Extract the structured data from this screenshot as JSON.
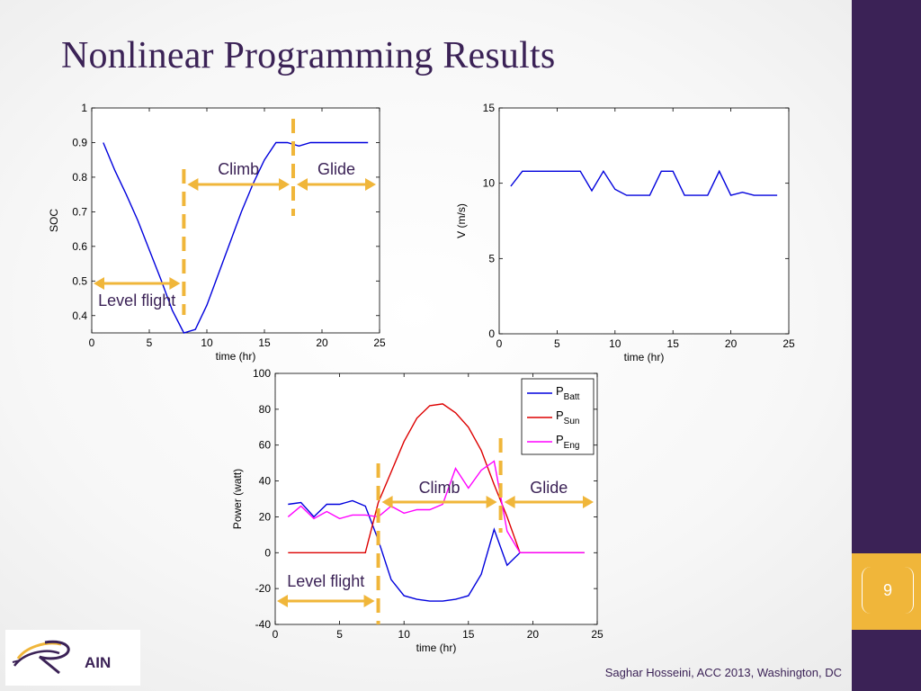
{
  "slide": {
    "title": "Nonlinear Programming Results",
    "page_number": "9",
    "footer": "Saghar Hosseini,  ACC 2013, Washington, DC",
    "logo_text": "AIN",
    "accent_color": "#f0b63a",
    "brand_color": "#3b2256"
  },
  "chart_data": [
    {
      "type": "line",
      "id": "soc",
      "xlabel": "time (hr)",
      "ylabel": "SOC",
      "xlim": [
        0,
        25
      ],
      "ylim": [
        0.35,
        1
      ],
      "xticks": [
        0,
        5,
        10,
        15,
        20,
        25
      ],
      "yticks": [
        0.4,
        0.5,
        0.6,
        0.7,
        0.8,
        0.9,
        1
      ],
      "ytick_labels": [
        "0.4",
        "0.5",
        "0.6",
        "0.7",
        "0.8",
        "0.9",
        "1"
      ],
      "series": [
        {
          "color": "#0000dd",
          "x": [
            1,
            2,
            3,
            4,
            5,
            6,
            7,
            8,
            9,
            10,
            11,
            12,
            13,
            14,
            15,
            16,
            17,
            18,
            19,
            20,
            21,
            22,
            23,
            24
          ],
          "y": [
            0.9,
            0.82,
            0.75,
            0.675,
            0.59,
            0.505,
            0.415,
            0.35,
            0.36,
            0.43,
            0.52,
            0.61,
            0.7,
            0.78,
            0.85,
            0.9,
            0.9,
            0.89,
            0.9,
            0.9,
            0.9,
            0.9,
            0.9,
            0.9
          ]
        }
      ],
      "annotations": [
        {
          "text": "Climb",
          "x_start": 8,
          "x_end": 17.5
        },
        {
          "text": "Glide",
          "x_start": 17.5,
          "x_end": 25
        },
        {
          "text": "Level flight",
          "x_start": 0,
          "x_end": 8
        }
      ],
      "phase_lines_x": [
        8,
        17.5
      ],
      "grid": false
    },
    {
      "type": "line",
      "id": "velocity",
      "xlabel": "time (hr)",
      "ylabel": "V (m/s)",
      "xlim": [
        0,
        25
      ],
      "ylim": [
        0,
        15
      ],
      "xticks": [
        0,
        5,
        10,
        15,
        20,
        25
      ],
      "yticks": [
        0,
        5,
        10,
        15
      ],
      "series": [
        {
          "color": "#0000dd",
          "x": [
            1,
            2,
            3,
            4,
            5,
            6,
            7,
            8,
            9,
            10,
            11,
            12,
            13,
            14,
            15,
            16,
            17,
            18,
            19,
            20,
            21,
            22,
            23,
            24
          ],
          "y": [
            9.8,
            10.8,
            10.8,
            10.8,
            10.8,
            10.8,
            10.8,
            9.5,
            10.8,
            9.6,
            9.2,
            9.2,
            9.2,
            10.8,
            10.8,
            9.2,
            9.2,
            9.2,
            10.8,
            9.2,
            9.4,
            9.2,
            9.2,
            9.2
          ]
        }
      ],
      "grid": false
    },
    {
      "type": "line",
      "id": "power",
      "xlabel": "time (hr)",
      "ylabel": "Power (watt)",
      "xlim": [
        0,
        25
      ],
      "ylim": [
        -40,
        100
      ],
      "xticks": [
        0,
        5,
        10,
        15,
        20,
        25
      ],
      "yticks": [
        -40,
        -20,
        0,
        20,
        40,
        60,
        80,
        100
      ],
      "legend": {
        "position": "top-right"
      },
      "series": [
        {
          "name": "P",
          "subscript": "Batt",
          "color": "#0000dd",
          "x": [
            1,
            2,
            3,
            4,
            5,
            6,
            7,
            8,
            9,
            10,
            11,
            12,
            13,
            14,
            15,
            16,
            17,
            18,
            19,
            20,
            21,
            22,
            23,
            24
          ],
          "y": [
            27,
            28,
            20,
            27,
            27,
            29,
            26,
            7,
            -15,
            -24,
            -26,
            -27,
            -27,
            -26,
            -24,
            -12,
            13,
            -7,
            0,
            0,
            0,
            0,
            0,
            0
          ]
        },
        {
          "name": "P",
          "subscript": "Sun",
          "color": "#dd0000",
          "x": [
            1,
            2,
            3,
            4,
            5,
            6,
            7,
            8,
            9,
            10,
            11,
            12,
            13,
            14,
            15,
            16,
            17,
            18,
            19,
            20,
            21,
            22,
            23,
            24
          ],
          "y": [
            0,
            0,
            0,
            0,
            0,
            0,
            0,
            28,
            45,
            62,
            75,
            82,
            83,
            78,
            70,
            57,
            38,
            20,
            0,
            0,
            0,
            0,
            0,
            0
          ]
        },
        {
          "name": "P",
          "subscript": "Eng",
          "color": "#ff00ff",
          "x": [
            1,
            2,
            3,
            4,
            5,
            6,
            7,
            8,
            9,
            10,
            11,
            12,
            13,
            14,
            15,
            16,
            17,
            18,
            19,
            20,
            21,
            22,
            23,
            24
          ],
          "y": [
            20,
            26,
            19,
            23,
            19,
            21,
            21,
            20,
            26,
            22,
            24,
            24,
            27,
            47,
            36,
            46,
            51,
            12,
            0,
            0,
            0,
            0,
            0,
            0
          ]
        }
      ],
      "annotations": [
        {
          "text": "Climb",
          "x_start": 8,
          "x_end": 17.5
        },
        {
          "text": "Glide",
          "x_start": 17.5,
          "x_end": 25
        },
        {
          "text": "Level flight",
          "x_start": 0,
          "x_end": 8
        }
      ],
      "phase_lines_x": [
        8,
        17.5
      ],
      "grid": false
    }
  ]
}
